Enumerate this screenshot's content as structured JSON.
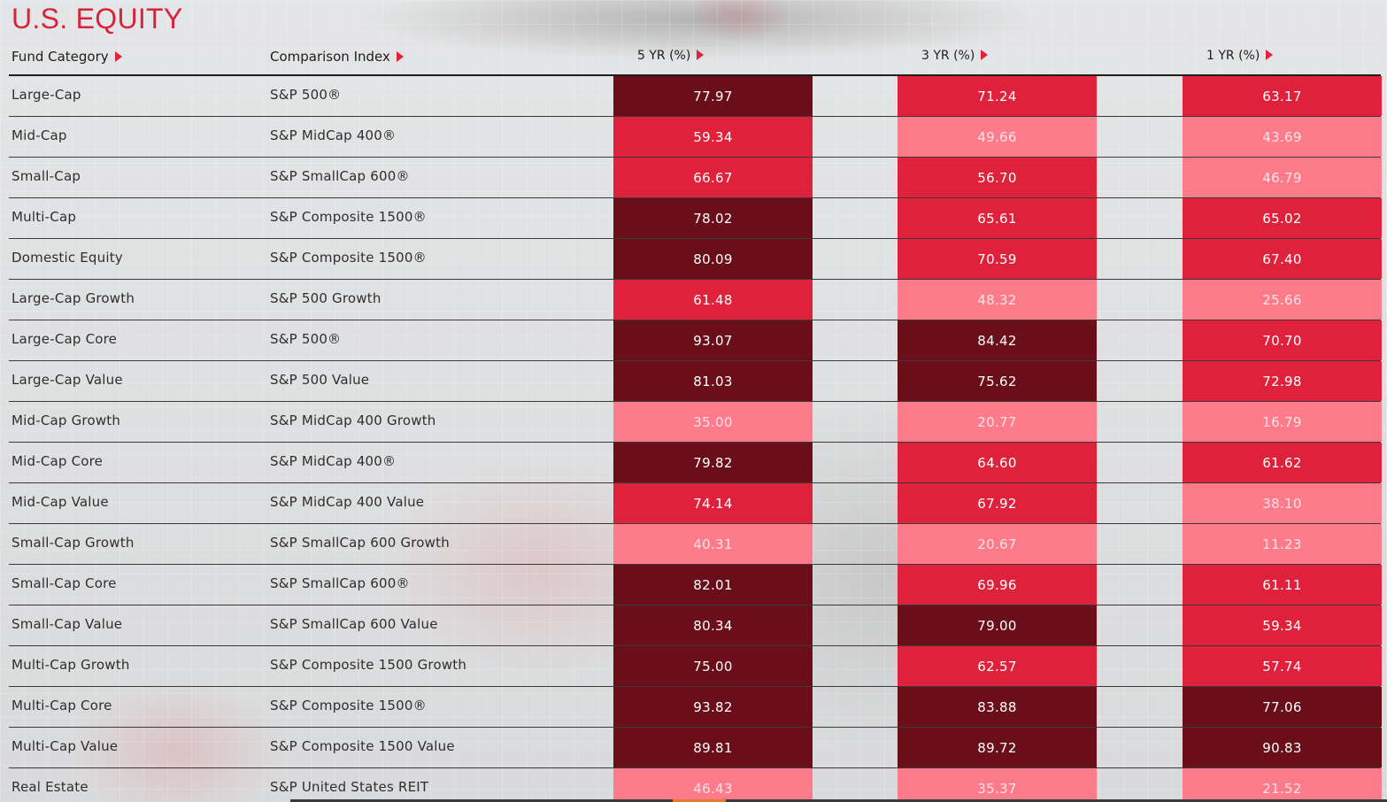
{
  "title": "U.S. EQUITY",
  "headers": {
    "category": "Fund Category",
    "index": "Comparison Index",
    "y5": "5 YR (%)",
    "y3": "3 YR (%)",
    "y1": "1 YR (%)"
  },
  "colors": {
    "title": "#d6243c",
    "dark": "#6a0e1a",
    "mid": "#e0213c",
    "light": "#fe7b8b"
  },
  "rows": [
    {
      "category": "Large-Cap",
      "index": "S&P 500®",
      "y5": "77.97",
      "y3": "71.24",
      "y1": "63.17"
    },
    {
      "category": "Mid-Cap",
      "index": "S&P MidCap 400®",
      "y5": "59.34",
      "y3": "49.66",
      "y1": "43.69"
    },
    {
      "category": "Small-Cap",
      "index": "S&P SmallCap 600®",
      "y5": "66.67",
      "y3": "56.70",
      "y1": "46.79"
    },
    {
      "category": "Multi-Cap",
      "index": "S&P Composite 1500®",
      "y5": "78.02",
      "y3": "65.61",
      "y1": "65.02"
    },
    {
      "category": "Domestic Equity",
      "index": "S&P Composite 1500®",
      "y5": "80.09",
      "y3": "70.59",
      "y1": "67.40"
    },
    {
      "category": "Large-Cap Growth",
      "index": "S&P 500 Growth",
      "y5": "61.48",
      "y3": "48.32",
      "y1": "25.66"
    },
    {
      "category": "Large-Cap Core",
      "index": "S&P 500®",
      "y5": "93.07",
      "y3": "84.42",
      "y1": "70.70"
    },
    {
      "category": "Large-Cap Value",
      "index": "S&P 500 Value",
      "y5": "81.03",
      "y3": "75.62",
      "y1": "72.98"
    },
    {
      "category": "Mid-Cap Growth",
      "index": "S&P MidCap 400 Growth",
      "y5": "35.00",
      "y3": "20.77",
      "y1": "16.79"
    },
    {
      "category": "Mid-Cap Core",
      "index": "S&P MidCap 400®",
      "y5": "79.82",
      "y3": "64.60",
      "y1": "61.62"
    },
    {
      "category": "Mid-Cap Value",
      "index": "S&P MidCap 400 Value",
      "y5": "74.14",
      "y3": "67.92",
      "y1": "38.10"
    },
    {
      "category": "Small-Cap Growth",
      "index": "S&P SmallCap 600 Growth",
      "y5": "40.31",
      "y3": "20.67",
      "y1": "11.23"
    },
    {
      "category": "Small-Cap Core",
      "index": "S&P SmallCap 600®",
      "y5": "82.01",
      "y3": "69.96",
      "y1": "61.11"
    },
    {
      "category": "Small-Cap Value",
      "index": "S&P SmallCap 600 Value",
      "y5": "80.34",
      "y3": "79.00",
      "y1": "59.34"
    },
    {
      "category": "Multi-Cap Growth",
      "index": "S&P Composite 1500 Growth",
      "y5": "75.00",
      "y3": "62.57",
      "y1": "57.74"
    },
    {
      "category": "Multi-Cap Core",
      "index": "S&P Composite 1500®",
      "y5": "93.82",
      "y3": "83.88",
      "y1": "77.06"
    },
    {
      "category": "Multi-Cap Value",
      "index": "S&P Composite 1500 Value",
      "y5": "89.81",
      "y3": "89.72",
      "y1": "90.83"
    },
    {
      "category": "Real Estate",
      "index": "S&P United States REIT",
      "y5": "46.43",
      "y3": "35.37",
      "y1": "21.52"
    }
  ]
}
